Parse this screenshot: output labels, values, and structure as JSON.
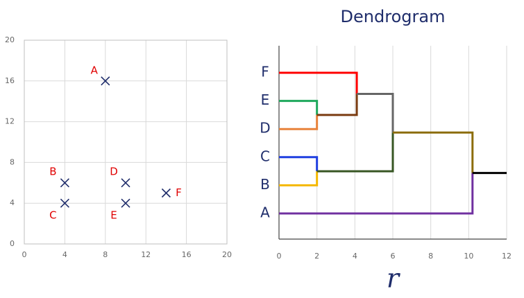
{
  "chart_data": [
    {
      "type": "scatter",
      "x": [
        8,
        4,
        4,
        10,
        10,
        14
      ],
      "y": [
        16,
        6,
        4,
        6,
        4,
        5
      ],
      "labels": [
        "A",
        "B",
        "C",
        "D",
        "E",
        "F"
      ],
      "color": "#1f2d6b",
      "label_color": "#e00000",
      "xlim": [
        0,
        20
      ],
      "ylim": [
        0,
        20
      ],
      "xticks": [
        0,
        4,
        8,
        12,
        16,
        20
      ],
      "yticks": [
        0,
        4,
        8,
        12,
        16,
        20
      ],
      "grid": true
    },
    {
      "type": "dendrogram",
      "title": "Dendrogram",
      "xlabel": "r",
      "leaves": [
        "F",
        "E",
        "D",
        "C",
        "B",
        "A"
      ],
      "merges": [
        {
          "children": [
            1,
            2
          ],
          "height": 2,
          "colors": [
            "#1ea85c",
            "#e8823a"
          ]
        },
        {
          "children": [
            3,
            4
          ],
          "height": 2,
          "colors": [
            "#1f3fe0",
            "#f5b800"
          ]
        },
        {
          "children": [
            0,
            6
          ],
          "height": 4.1,
          "colors": [
            "#ff0000",
            "#7a3b10"
          ]
        },
        {
          "children": [
            8,
            7
          ],
          "height": 6,
          "colors": [
            "#666666",
            "#375623"
          ]
        },
        {
          "children": [
            9,
            5
          ],
          "height": 10.2,
          "colors": [
            "#8c6d0a",
            "#7030a0"
          ]
        }
      ],
      "root_color": "#000000",
      "xlim": [
        0,
        12
      ],
      "xticks": [
        0,
        2,
        4,
        6,
        8,
        10,
        12
      ],
      "grid": true
    }
  ]
}
